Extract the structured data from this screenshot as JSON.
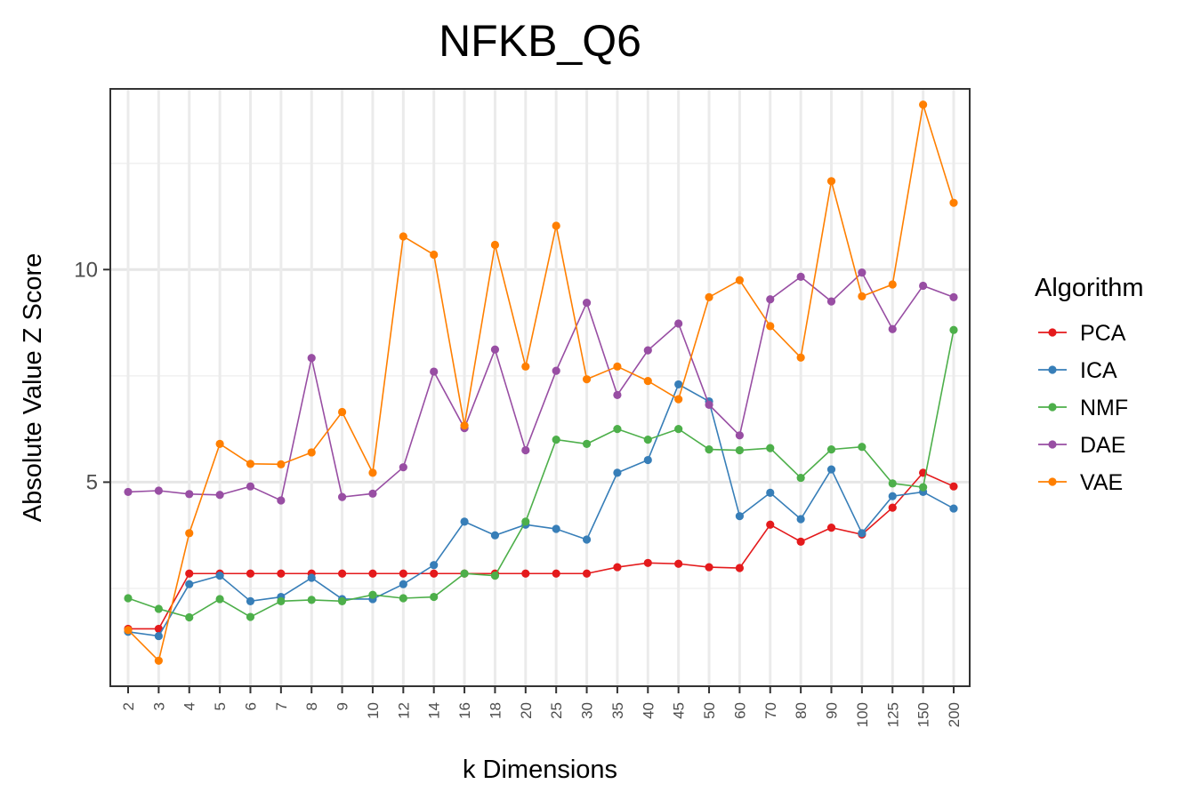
{
  "chart_data": {
    "type": "line",
    "title": "NFKB_Q6",
    "xlabel": "k Dimensions",
    "ylabel": "Absolute Value Z Score",
    "categories": [
      "2",
      "3",
      "4",
      "5",
      "6",
      "7",
      "8",
      "9",
      "10",
      "12",
      "14",
      "16",
      "18",
      "20",
      "25",
      "30",
      "35",
      "40",
      "45",
      "50",
      "60",
      "70",
      "80",
      "90",
      "100",
      "125",
      "150",
      "200"
    ],
    "y_ticks": [
      5,
      10
    ],
    "ylim": [
      0.2,
      14.25
    ],
    "grid": true,
    "legend_title": "Algorithm",
    "legend_position": "right",
    "series": [
      {
        "name": "PCA",
        "color": "#E41A1C",
        "values": [
          1.55,
          1.55,
          2.85,
          2.85,
          2.85,
          2.85,
          2.85,
          2.85,
          2.85,
          2.85,
          2.85,
          2.85,
          2.85,
          2.85,
          2.85,
          2.85,
          3.0,
          3.1,
          3.08,
          3.0,
          2.98,
          4.0,
          3.6,
          3.93,
          3.77,
          4.4,
          5.22,
          4.9
        ]
      },
      {
        "name": "ICA",
        "color": "#377EB8",
        "values": [
          1.48,
          1.38,
          2.6,
          2.8,
          2.2,
          2.3,
          2.75,
          2.25,
          2.25,
          2.6,
          3.05,
          4.07,
          3.75,
          4.0,
          3.9,
          3.65,
          5.22,
          5.52,
          7.3,
          6.9,
          4.2,
          4.75,
          4.13,
          5.3,
          3.8,
          4.67,
          4.77,
          4.38
        ]
      },
      {
        "name": "NMF",
        "color": "#4DAF4A",
        "values": [
          2.27,
          2.02,
          1.82,
          2.25,
          1.83,
          2.2,
          2.23,
          2.2,
          2.35,
          2.27,
          2.3,
          2.85,
          2.8,
          4.07,
          6.0,
          5.9,
          6.25,
          6.0,
          6.25,
          5.77,
          5.75,
          5.8,
          5.1,
          5.77,
          5.83,
          4.97,
          4.88,
          8.58
        ]
      },
      {
        "name": "DAE",
        "color": "#984EA3",
        "values": [
          4.77,
          4.8,
          4.72,
          4.7,
          4.9,
          4.57,
          7.92,
          4.65,
          4.73,
          5.35,
          7.6,
          6.27,
          8.12,
          5.75,
          7.62,
          9.22,
          7.05,
          8.1,
          8.73,
          6.82,
          6.1,
          9.3,
          9.83,
          9.25,
          9.93,
          8.6,
          9.62,
          9.35
        ]
      },
      {
        "name": "VAE",
        "color": "#FF7F00",
        "values": [
          1.52,
          0.8,
          3.8,
          5.9,
          5.43,
          5.42,
          5.7,
          6.65,
          5.22,
          10.78,
          10.35,
          6.33,
          10.58,
          7.72,
          11.03,
          7.42,
          7.72,
          7.38,
          6.95,
          9.35,
          9.75,
          8.67,
          7.93,
          12.08,
          9.37,
          9.65,
          13.88,
          11.57
        ]
      }
    ]
  }
}
